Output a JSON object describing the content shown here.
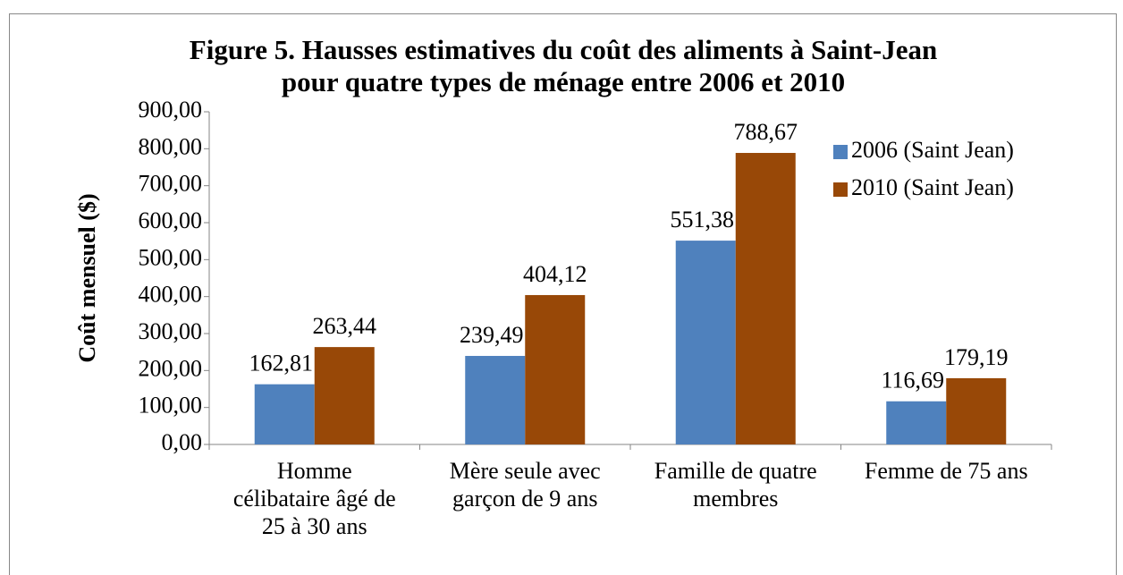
{
  "chart_data": {
    "type": "bar",
    "title": "Figure 5. Hausses estimatives du coût des aliments à Saint-Jean\npour quatre types de ménage entre 2006 et 2010",
    "y_label": "Coût mensuel ($)",
    "categories": [
      "Homme\ncélibataire âgé de\n25 à 30 ans",
      "Mère seule avec\ngarçon de 9 ans",
      "Famille de quatre\nmembres",
      "Femme de 75 ans"
    ],
    "series": [
      {
        "name": "2006 (Saint Jean)",
        "color": "#4f81bd",
        "values": [
          162.81,
          239.49,
          551.38,
          116.69
        ],
        "value_labels": [
          "162,81",
          "239,49",
          "551,38",
          "116,69"
        ]
      },
      {
        "name": "2010 (Saint Jean)",
        "color": "#984807",
        "values": [
          263.44,
          404.12,
          788.67,
          179.19
        ],
        "value_labels": [
          "263,44",
          "404,12",
          "788,67",
          "179,19"
        ]
      }
    ],
    "ylim": [
      0,
      900
    ],
    "yticks": [
      {
        "value": 0,
        "label": "0,00"
      },
      {
        "value": 100,
        "label": "100,00"
      },
      {
        "value": 200,
        "label": "200,00"
      },
      {
        "value": 300,
        "label": "300,00"
      },
      {
        "value": 400,
        "label": "400,00"
      },
      {
        "value": 500,
        "label": "500,00"
      },
      {
        "value": 600,
        "label": "600,00"
      },
      {
        "value": 700,
        "label": "700,00"
      },
      {
        "value": 800,
        "label": "800,00"
      },
      {
        "value": 900,
        "label": "900,00"
      }
    ],
    "grid": false,
    "legend": "upper right"
  }
}
